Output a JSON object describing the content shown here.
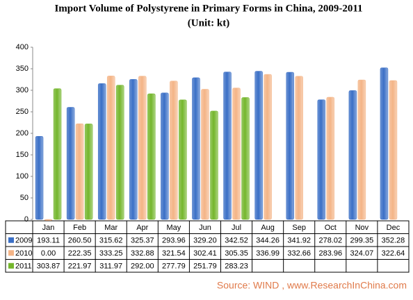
{
  "chart_data": {
    "type": "bar",
    "title": "Import Volume of Polystyrene in Primary Forms in China, 2009-2011",
    "subtitle": "(Unit: kt)",
    "categories": [
      "Jan",
      "Feb",
      "Mar",
      "Apr",
      "May",
      "Jun",
      "Jul",
      "Aug",
      "Sep",
      "Oct",
      "Nov",
      "Dec"
    ],
    "series": [
      {
        "name": "2009",
        "color": "#3a6fc6",
        "values": [
          193.11,
          260.5,
          315.62,
          325.37,
          293.96,
          329.2,
          342.52,
          344.26,
          341.92,
          278.02,
          299.35,
          352.28
        ],
        "value_labels": [
          "193.11",
          "260.50",
          "315.62",
          "325.37",
          "293.96",
          "329.20",
          "342.52",
          "344.26",
          "341.92",
          "278.02",
          "299.35",
          "352.28"
        ]
      },
      {
        "name": "2010",
        "color": "#f4b486",
        "values": [
          0,
          222.35,
          333.25,
          332.88,
          321.54,
          302.41,
          305.35,
          336.99,
          332.66,
          283.96,
          324.07,
          322.64
        ],
        "value_labels": [
          "0.00",
          "222.35",
          "333.25",
          "332.88",
          "321.54",
          "302.41",
          "305.35",
          "336.99",
          "332.66",
          "283.96",
          "324.07",
          "322.64"
        ]
      },
      {
        "name": "2011",
        "color": "#74b62c",
        "values": [
          303.87,
          221.97,
          311.97,
          292,
          277.79,
          251.79,
          283.23,
          null,
          null,
          null,
          null,
          null
        ],
        "value_labels": [
          "303.87",
          "221.97",
          "311.97",
          "292.00",
          "277.79",
          "251.79",
          "283.23",
          null,
          null,
          null,
          null,
          null
        ]
      }
    ],
    "ylim": [
      0,
      400
    ],
    "yticks": [
      0,
      50,
      100,
      150,
      200,
      250,
      300,
      350,
      400
    ],
    "grid": false,
    "source": "Source: WIND , www.ResearchInChina.com"
  }
}
